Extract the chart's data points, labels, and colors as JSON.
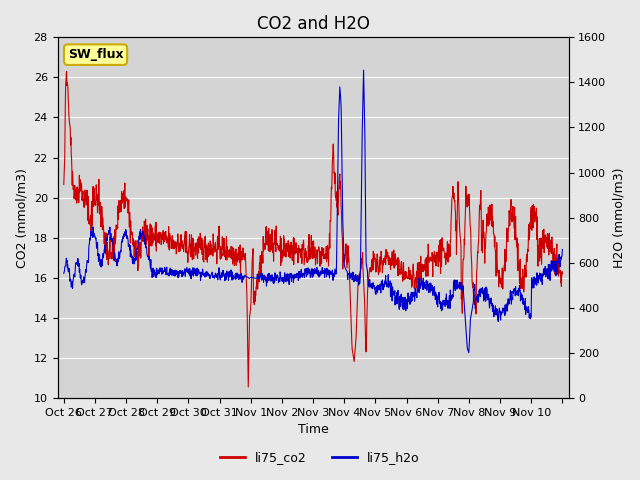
{
  "title": "CO2 and H2O",
  "xlabel": "Time",
  "ylabel_left": "CO2 (mmol/m3)",
  "ylabel_right": "H2O (mmol/m3)",
  "ylim_left": [
    10,
    28
  ],
  "ylim_right": [
    0,
    1600
  ],
  "yticks_left": [
    10,
    12,
    14,
    16,
    18,
    20,
    22,
    24,
    26,
    28
  ],
  "yticks_right": [
    0,
    200,
    400,
    600,
    800,
    1000,
    1200,
    1400,
    1600
  ],
  "xtick_positions": [
    0,
    1,
    2,
    3,
    4,
    5,
    6,
    7,
    8,
    9,
    10,
    11,
    12,
    13,
    14,
    15,
    16
  ],
  "xtick_labels": [
    "Oct 26",
    "Oct 27",
    "Oct 28",
    "Oct 29",
    "Oct 30",
    "Oct 31",
    "Nov 1",
    "Nov 2",
    "Nov 3",
    "Nov 4",
    "Nov 5",
    "Nov 6",
    "Nov 7",
    "Nov 8",
    "Nov 9",
    "Nov 10",
    ""
  ],
  "sw_flux_label": "SW_flux",
  "legend_co2": "li75_co2",
  "legend_h2o": "li75_h2o",
  "co2_color": "#cc0000",
  "h2o_color": "#0000cc",
  "fig_bg_color": "#e8e8e8",
  "plot_bg_color": "#d4d4d4",
  "sw_flux_bg": "#ffff99",
  "sw_flux_border": "#ccaa00",
  "title_fontsize": 12,
  "axis_fontsize": 9,
  "tick_fontsize": 8,
  "legend_fontsize": 9,
  "line_width": 0.8
}
